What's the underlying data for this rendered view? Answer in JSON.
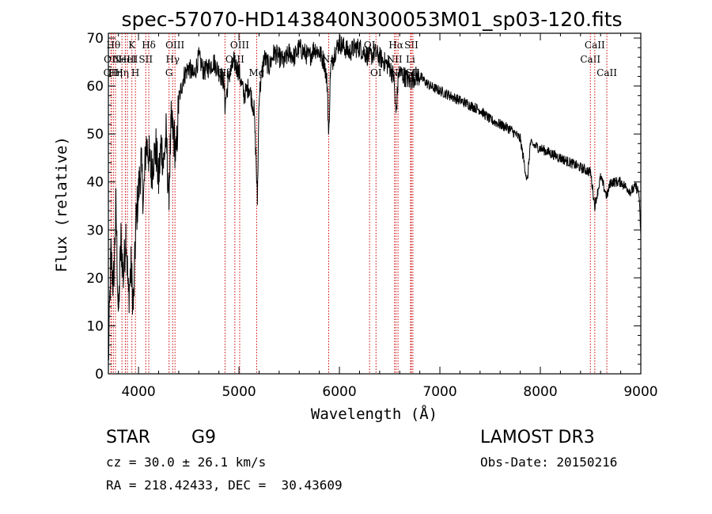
{
  "chart_data": {
    "type": "line",
    "title": "spec-57070-HD143840N300053M01_sp03-120.fits",
    "xlabel": "Wavelength (Å)",
    "ylabel": "Flux (relative)",
    "xlim": [
      3700,
      9000
    ],
    "ylim": [
      0,
      71
    ],
    "x_ticks": [
      4000,
      5000,
      6000,
      7000,
      8000,
      9000
    ],
    "y_ticks": [
      0,
      10,
      20,
      30,
      40,
      50,
      60,
      70
    ],
    "grid": false,
    "line_color": "#000000",
    "marker_color": "#cc0000",
    "series": [
      {
        "x": [
          3700,
          3725,
          3750,
          3775,
          3800,
          3825,
          3850,
          3875,
          3900,
          3925,
          3950,
          3975,
          4000,
          4025,
          4050,
          4075,
          4100,
          4125,
          4150,
          4175,
          4200,
          4225,
          4250,
          4275,
          4300,
          4325,
          4350,
          4375,
          4400,
          4450,
          4500,
          4550,
          4600,
          4650,
          4700,
          4750,
          4800,
          4850,
          4861,
          4900,
          4950,
          5000,
          5050,
          5100,
          5150,
          5170,
          5183,
          5200,
          5250,
          5300,
          5350,
          5400,
          5450,
          5500,
          5550,
          5600,
          5650,
          5700,
          5750,
          5800,
          5850,
          5880,
          5893,
          5910,
          5950,
          6000,
          6050,
          6100,
          6150,
          6200,
          6250,
          6300,
          6350,
          6400,
          6450,
          6500,
          6540,
          6563,
          6590,
          6650,
          6700,
          6750,
          6800,
          6900,
          7000,
          7100,
          7200,
          7300,
          7400,
          7500,
          7600,
          7700,
          7800,
          7870,
          7900,
          8000,
          8100,
          8200,
          8300,
          8400,
          8500,
          8542,
          8600,
          8662,
          8700,
          8800,
          8900,
          8950,
          8980,
          9000
        ],
        "y": [
          2,
          25,
          18,
          35,
          12,
          28,
          20,
          30,
          16,
          22,
          14,
          32,
          38,
          44,
          36,
          48,
          46,
          42,
          45,
          47,
          40,
          48,
          44,
          50,
          37,
          52,
          50,
          45,
          57,
          62,
          64,
          62,
          66,
          63,
          64,
          65,
          63,
          61,
          56,
          62,
          65,
          63,
          58,
          60,
          55,
          45,
          36,
          58,
          66,
          64,
          67,
          66,
          65,
          67,
          66,
          68,
          67,
          66,
          68,
          67,
          65,
          60,
          49,
          63,
          67,
          69,
          68,
          67,
          68,
          68,
          67,
          66,
          67,
          66,
          65,
          64,
          62,
          54,
          63,
          62,
          61,
          62,
          62,
          60,
          59,
          58,
          57,
          56,
          55,
          53,
          52,
          51,
          49,
          40,
          48,
          47,
          46,
          45,
          44,
          43,
          42,
          35,
          41,
          37,
          40,
          40,
          38,
          39,
          38,
          29
        ]
      }
    ],
    "line_markers": [
      {
        "x": 3726,
        "label": "OII",
        "row": 2
      },
      {
        "x": 3730,
        "label": "OII",
        "row": 1
      },
      {
        "x": 3750,
        "label": "Hθ",
        "row": 0
      },
      {
        "x": 3771,
        "label": "Hη",
        "row": 2
      },
      {
        "x": 3835,
        "label": "Hη",
        "row": 2
      },
      {
        "x": 3869,
        "label": "NeIII",
        "row": 1
      },
      {
        "x": 3889,
        "label": "HeI",
        "row": 1
      },
      {
        "x": 3934,
        "label": "K",
        "row": 0
      },
      {
        "x": 3969,
        "label": "H",
        "row": 2
      },
      {
        "x": 4072,
        "label": "SII",
        "row": 1
      },
      {
        "x": 4102,
        "label": "Hδ",
        "row": 0
      },
      {
        "x": 4304,
        "label": "G",
        "row": 2
      },
      {
        "x": 4340,
        "label": "Hγ",
        "row": 1
      },
      {
        "x": 4363,
        "label": "OIII",
        "row": 0
      },
      {
        "x": 4861,
        "label": "Hβ",
        "row": 2
      },
      {
        "x": 4959,
        "label": "OIII",
        "row": 1
      },
      {
        "x": 5007,
        "label": "OIII",
        "row": 0
      },
      {
        "x": 5176,
        "label": "Mg",
        "row": 2
      },
      {
        "x": 5893,
        "label": "Na",
        "row": 1
      },
      {
        "x": 6300,
        "label": "OI",
        "row": 0
      },
      {
        "x": 6364,
        "label": "OI",
        "row": 2
      },
      {
        "x": 6548,
        "label": "NII",
        "row": 1
      },
      {
        "x": 6563,
        "label": "Hα",
        "row": 0
      },
      {
        "x": 6583,
        "label": "NII",
        "row": 2
      },
      {
        "x": 6708,
        "label": "Li",
        "row": 1
      },
      {
        "x": 6716,
        "label": "SII",
        "row": 0
      },
      {
        "x": 6731,
        "label": "SII",
        "row": 2
      },
      {
        "x": 8498,
        "label": "CaII",
        "row": 1
      },
      {
        "x": 8542,
        "label": "CaII",
        "row": 0
      },
      {
        "x": 8662,
        "label": "CaII",
        "row": 2
      }
    ]
  },
  "info": {
    "class_label": "STAR",
    "subclass": "G9",
    "survey": "LAMOST DR3",
    "cz": "cz = 30.0 ± 26.1 km/s",
    "obs_date": "Obs-Date: 20150216",
    "coords": "RA = 218.42433, DEC =  30.43609"
  }
}
